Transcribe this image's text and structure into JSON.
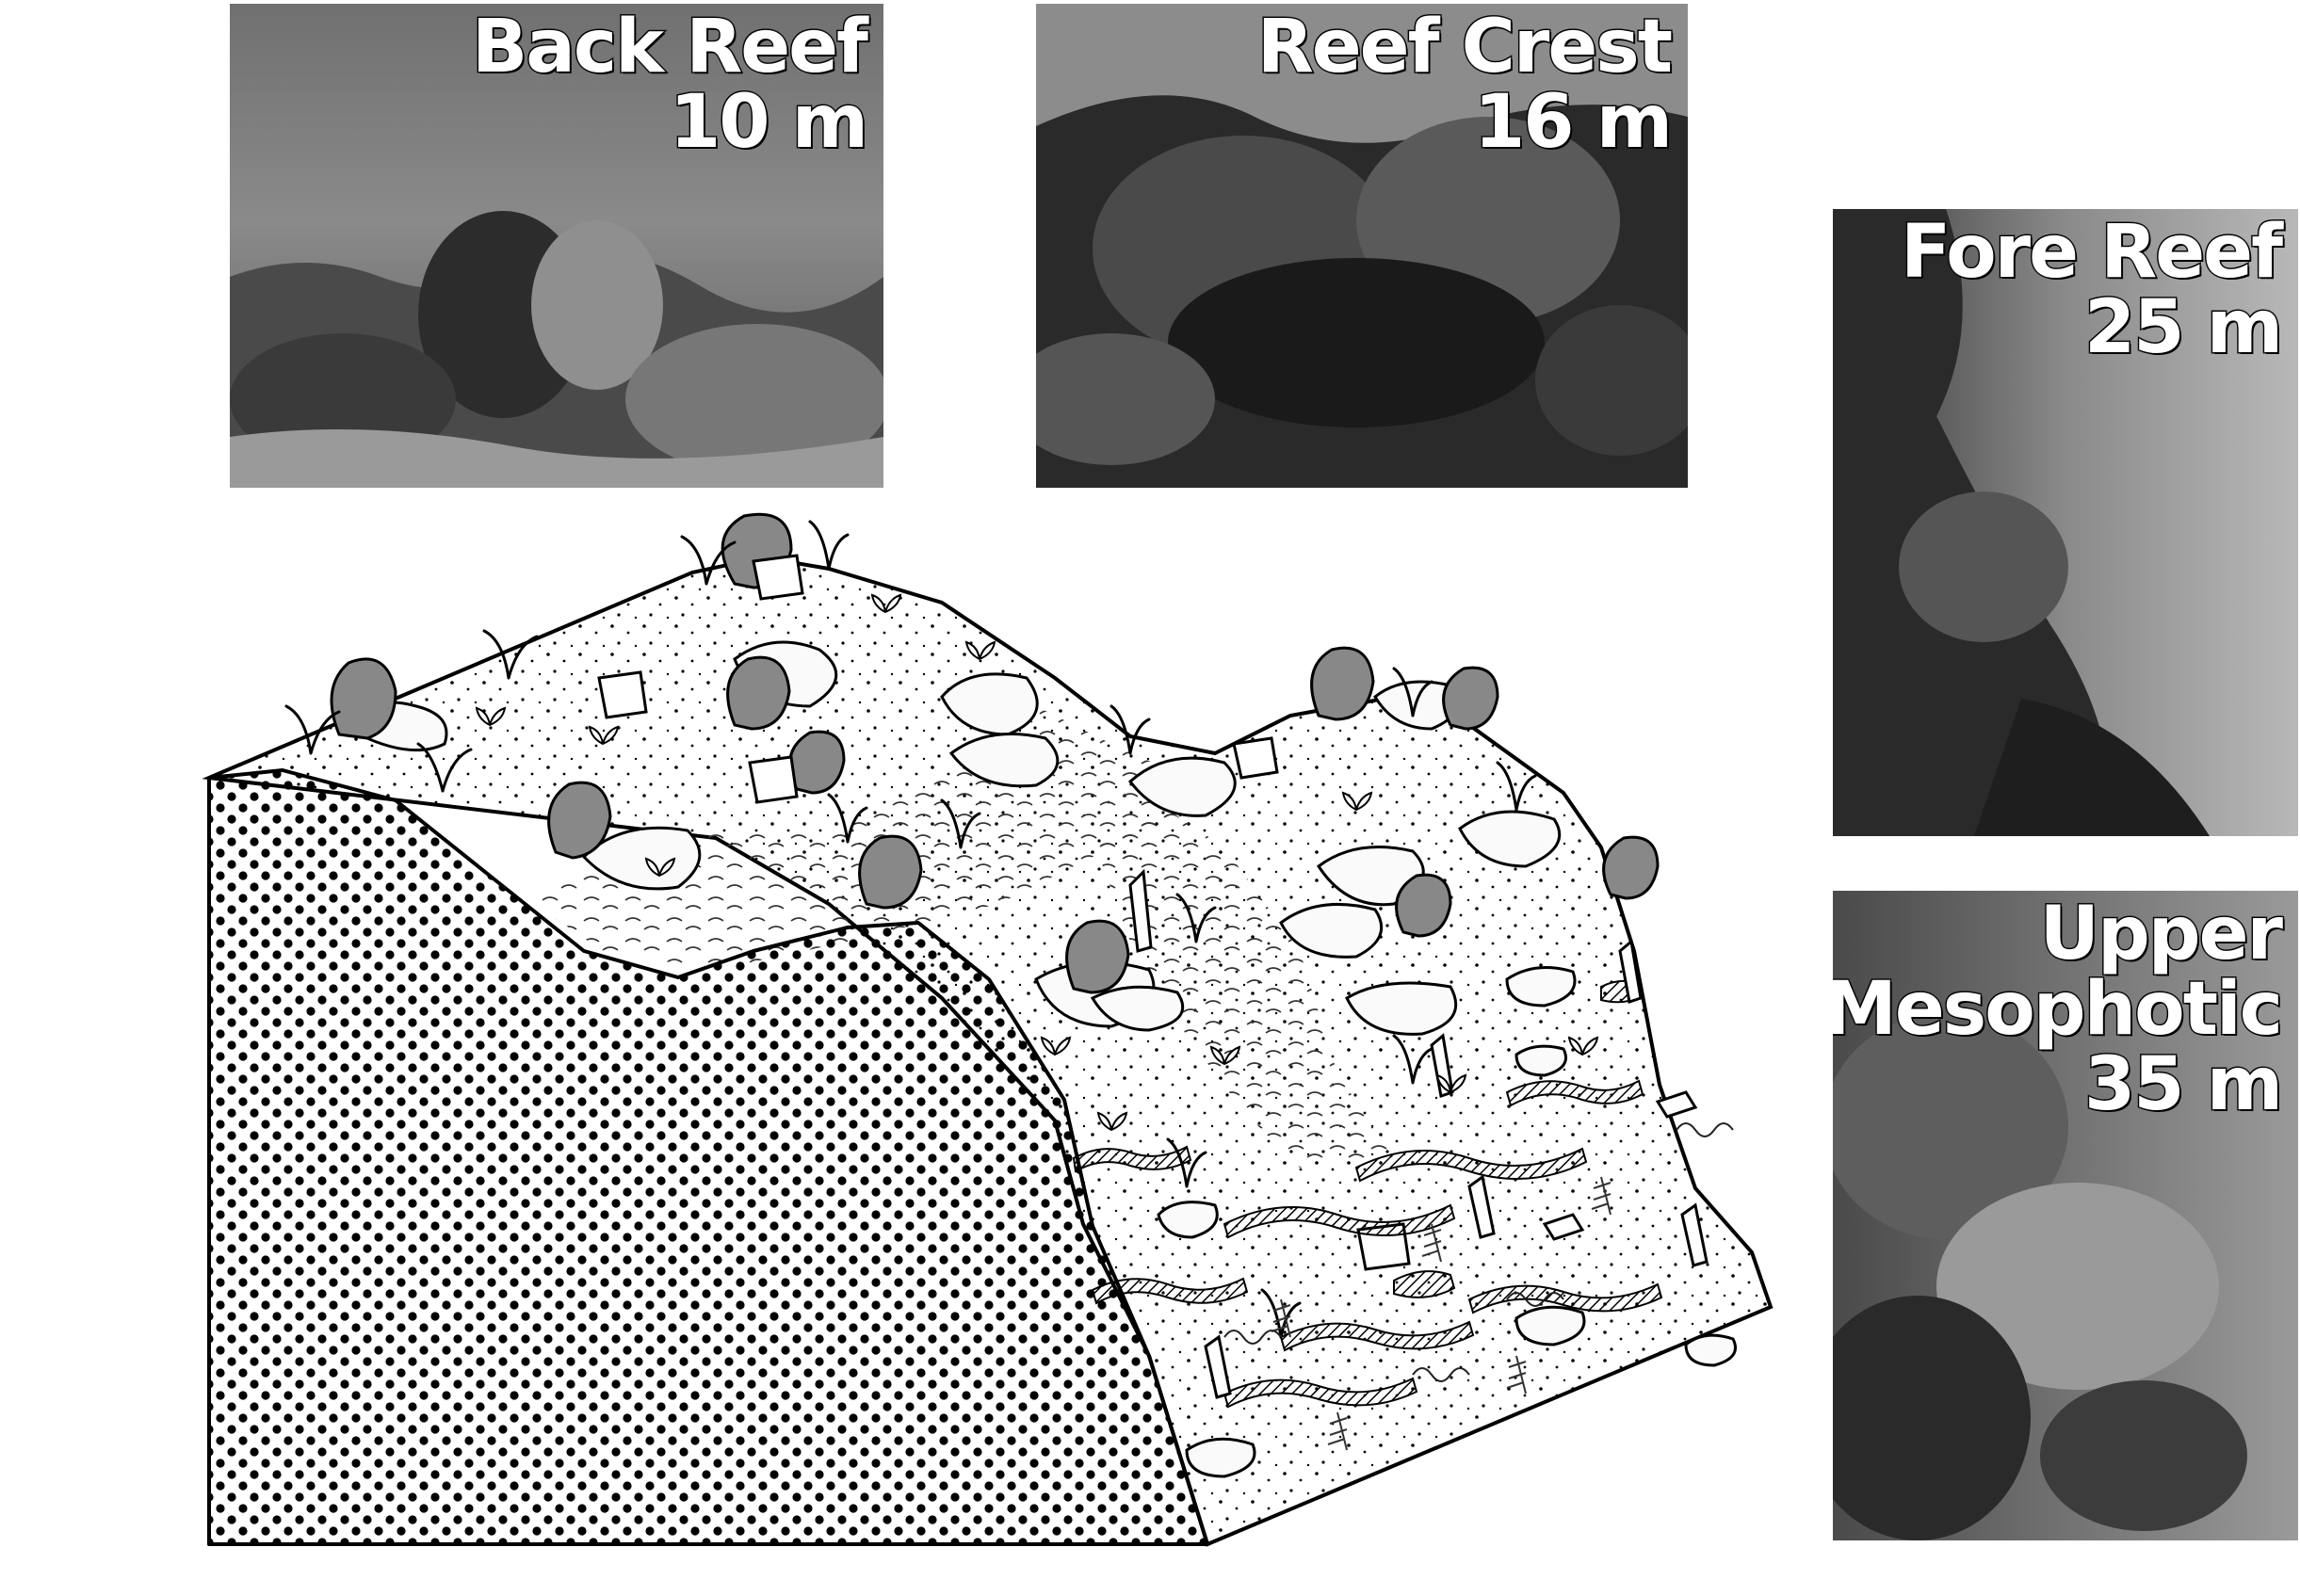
{
  "photos": {
    "back_reef": {
      "zone": "Back Reef",
      "depth": "10 m"
    },
    "reef_crest": {
      "zone": "Reef Crest",
      "depth": "16 m"
    },
    "fore_reef": {
      "zone": "Fore Reef",
      "depth": "25 m"
    },
    "upper_mesophotic": {
      "zone_line1": "Upper",
      "zone_line2": "Mesophotic",
      "depth": "35 m"
    }
  },
  "colors": {
    "ink": "#000000",
    "sand": "#f2f2f2",
    "photo_dark": "#1a1a1a",
    "photo_mid": "#6e6e6e",
    "photo_light": "#c8c8c8"
  }
}
